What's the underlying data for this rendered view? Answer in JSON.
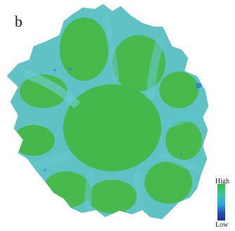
{
  "figure": {
    "panel_label": "b",
    "legend": {
      "high_label": "High",
      "low_label": "Low",
      "colors": [
        "#2fbf3f",
        "#38c7a0",
        "#2aa8e0",
        "#1f4fb8",
        "#1a2f8c"
      ]
    },
    "map_colors": {
      "dominant": "#44b84a",
      "secondary": "#5cc3c9",
      "accent": "#2f86d6"
    }
  }
}
